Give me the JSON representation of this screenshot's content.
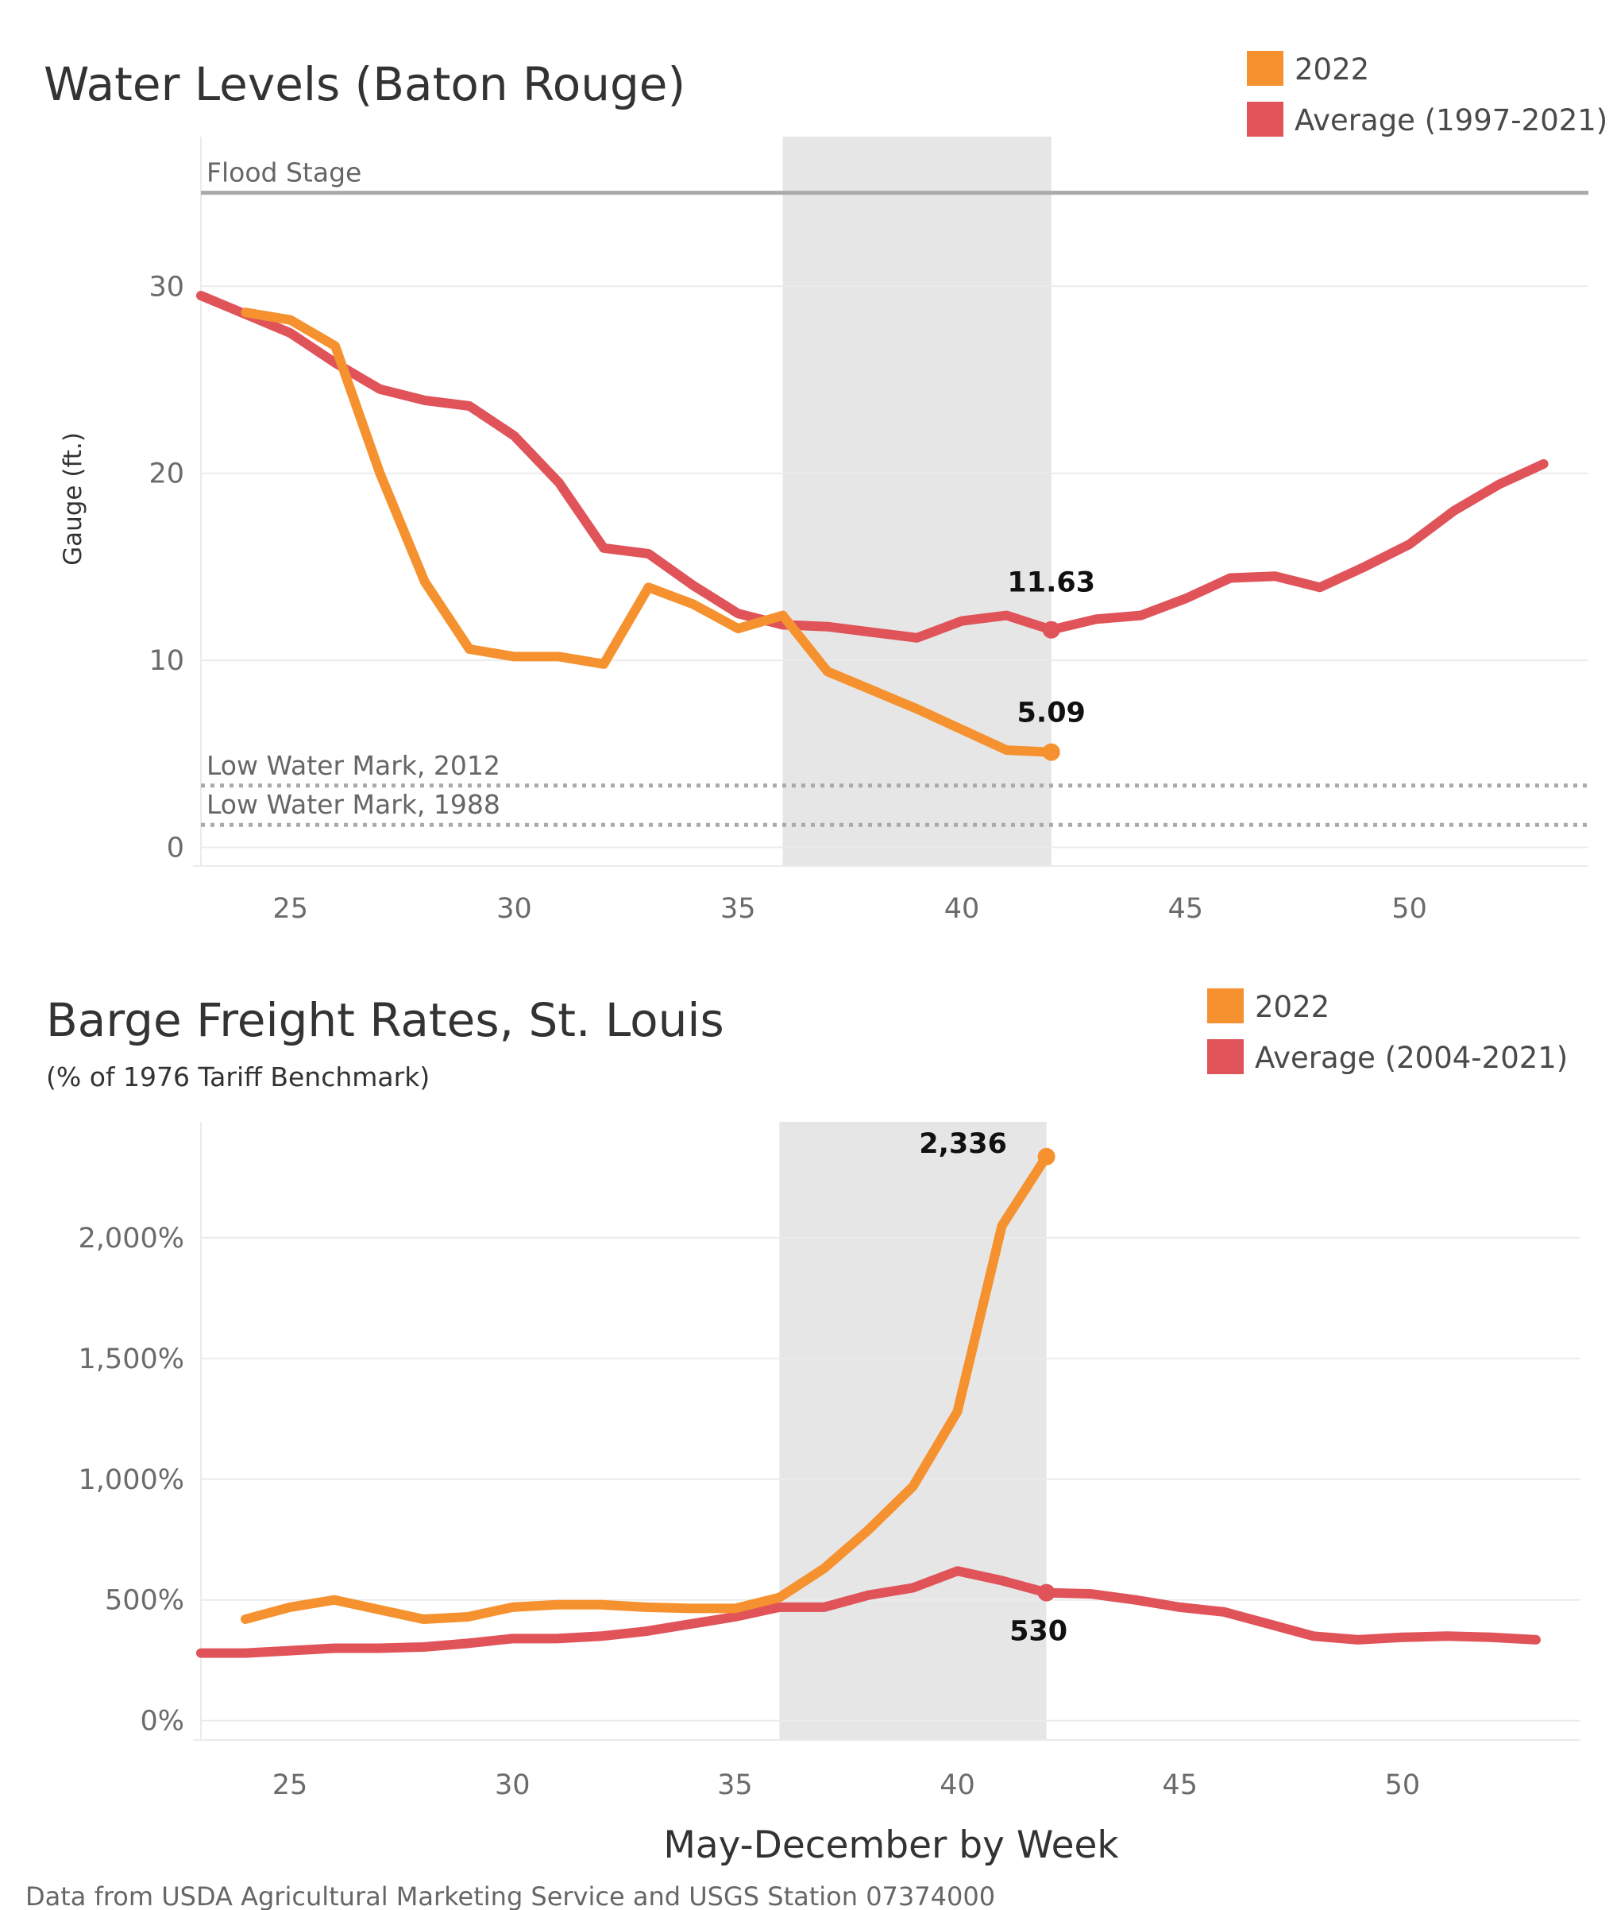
{
  "colors": {
    "y2022": "#f5922f",
    "average": "#e05359",
    "shade": "#e6e6e6",
    "grid": "#ebebeb",
    "ref": "#aaaaaa"
  },
  "source_note": "Data from USDA Agricultural Marketing Service and USGS Station 07374000",
  "x_axis_title": "May-December by Week",
  "chart_data": [
    {
      "type": "line",
      "title": "Water Levels (Baton Rouge)",
      "ylabel": "Gauge (ft.)",
      "xlim": [
        23,
        54
      ],
      "ylim": [
        -1,
        38
      ],
      "x_ticks": [
        25,
        30,
        35,
        40,
        45,
        50
      ],
      "y_ticks": [
        0,
        10,
        20,
        30
      ],
      "y_tick_labels": [
        "0",
        "10",
        "20",
        "30"
      ],
      "shaded_range": [
        36,
        42
      ],
      "reference_lines": [
        {
          "label": "Flood Stage",
          "value": 35,
          "style": "solid"
        },
        {
          "label": "Low Water Mark, 2012",
          "value": 3.3,
          "style": "dotted"
        },
        {
          "label": "Low Water Mark, 1988",
          "value": 1.2,
          "style": "dotted"
        }
      ],
      "legend": [
        "2022",
        "Average (1997-2021)"
      ],
      "series": [
        {
          "name": "2022",
          "x": [
            24,
            25,
            26,
            27,
            28,
            29,
            30,
            31,
            32,
            33,
            34,
            35,
            36,
            37,
            38,
            39,
            40,
            41,
            42
          ],
          "y": [
            28.6,
            28.2,
            26.8,
            20.0,
            14.2,
            10.6,
            10.2,
            10.2,
            9.8,
            13.9,
            13.0,
            11.7,
            12.4,
            9.4,
            8.4,
            7.4,
            6.3,
            5.2,
            5.09
          ]
        },
        {
          "name": "Average (1997-2021)",
          "x": [
            23,
            24,
            25,
            26,
            27,
            28,
            29,
            30,
            31,
            32,
            33,
            34,
            35,
            36,
            37,
            38,
            39,
            40,
            41,
            42,
            43,
            44,
            45,
            46,
            47,
            48,
            49,
            50,
            51,
            52,
            53
          ],
          "y": [
            29.5,
            28.5,
            27.5,
            25.9,
            24.5,
            23.9,
            23.6,
            22.0,
            19.5,
            16.0,
            15.7,
            14.0,
            12.5,
            11.9,
            11.8,
            11.5,
            11.2,
            12.1,
            12.4,
            11.63,
            12.2,
            12.4,
            13.3,
            14.4,
            14.5,
            13.9,
            15.0,
            16.2,
            18.0,
            19.4,
            20.5
          ]
        }
      ],
      "data_labels": [
        {
          "series": "Average (1997-2021)",
          "x": 42,
          "y": 11.63,
          "text": "11.63"
        },
        {
          "series": "2022",
          "x": 42,
          "y": 5.09,
          "text": "5.09"
        }
      ]
    },
    {
      "type": "line",
      "title": "Barge Freight Rates, St. Louis",
      "subtitle": "(% of 1976 Tariff Benchmark)",
      "xlim": [
        23,
        54
      ],
      "ylim": [
        -80,
        2480
      ],
      "x_ticks": [
        25,
        30,
        35,
        40,
        45,
        50
      ],
      "y_ticks": [
        0,
        500,
        1000,
        1500,
        2000
      ],
      "y_tick_labels": [
        "0%",
        "500%",
        "1,000%",
        "1,500%",
        "2,000%"
      ],
      "shaded_range": [
        36,
        42
      ],
      "legend": [
        "2022",
        "Average (2004-2021)"
      ],
      "series": [
        {
          "name": "2022",
          "x": [
            24,
            25,
            26,
            27,
            28,
            29,
            30,
            31,
            32,
            33,
            34,
            35,
            36,
            37,
            38,
            39,
            40,
            41,
            42
          ],
          "y": [
            420,
            470,
            500,
            460,
            420,
            430,
            470,
            480,
            480,
            470,
            465,
            465,
            510,
            630,
            790,
            970,
            1280,
            2050,
            2336
          ]
        },
        {
          "name": "Average (2004-2021)",
          "x": [
            23,
            24,
            25,
            26,
            27,
            28,
            29,
            30,
            31,
            32,
            33,
            34,
            35,
            36,
            37,
            38,
            39,
            40,
            41,
            42,
            43,
            44,
            45,
            46,
            47,
            48,
            49,
            50,
            51,
            52,
            53
          ],
          "y": [
            280,
            280,
            290,
            300,
            300,
            305,
            320,
            340,
            340,
            350,
            370,
            400,
            430,
            470,
            470,
            520,
            550,
            620,
            580,
            530,
            525,
            500,
            470,
            450,
            400,
            350,
            335,
            345,
            350,
            345,
            335
          ]
        }
      ],
      "data_labels": [
        {
          "series": "2022",
          "x": 42,
          "y": 2336,
          "text": "2,336"
        },
        {
          "series": "Average (2004-2021)",
          "x": 42,
          "y": 530,
          "text": "530"
        }
      ]
    }
  ]
}
